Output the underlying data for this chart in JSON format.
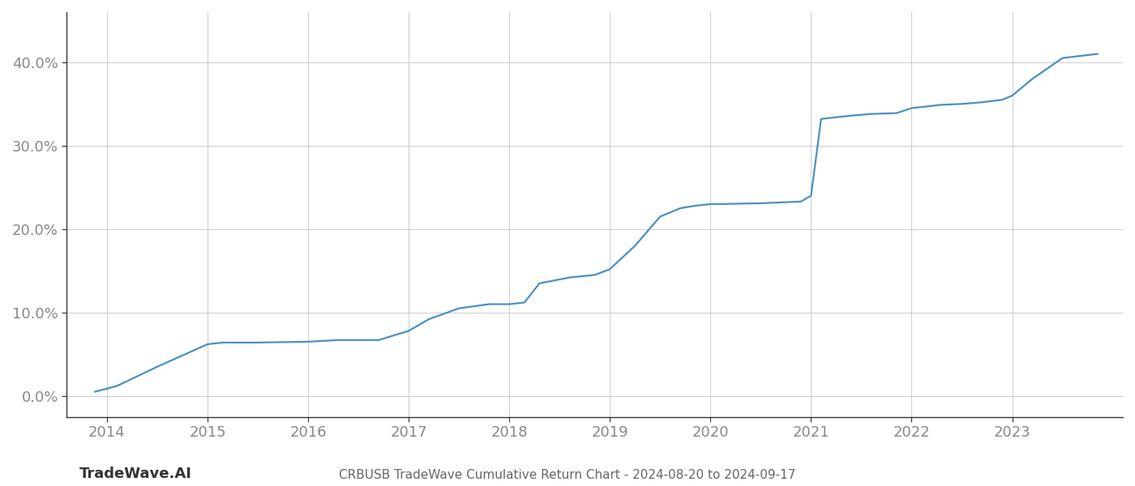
{
  "title": "CRBUSB TradeWave Cumulative Return Chart - 2024-08-20 to 2024-09-17",
  "watermark": "TradeWave.AI",
  "line_color": "#4a90c4",
  "background_color": "#ffffff",
  "grid_color": "#cccccc",
  "x_values": [
    2013.88,
    2014.1,
    2014.5,
    2015.0,
    2015.15,
    2015.5,
    2016.0,
    2016.3,
    2016.7,
    2017.0,
    2017.2,
    2017.5,
    2017.8,
    2018.0,
    2018.15,
    2018.3,
    2018.6,
    2018.85,
    2019.0,
    2019.25,
    2019.5,
    2019.7,
    2019.85,
    2020.0,
    2020.1,
    2020.5,
    2020.7,
    2020.9,
    2021.0,
    2021.1,
    2021.4,
    2021.6,
    2021.85,
    2022.0,
    2022.3,
    2022.5,
    2022.7,
    2022.9,
    2023.0,
    2023.2,
    2023.5,
    2023.85
  ],
  "y_values": [
    0.5,
    1.2,
    3.5,
    6.2,
    6.4,
    6.4,
    6.5,
    6.7,
    6.7,
    7.8,
    9.2,
    10.5,
    11.0,
    11.0,
    11.2,
    13.5,
    14.2,
    14.5,
    15.2,
    18.0,
    21.5,
    22.5,
    22.8,
    23.0,
    23.0,
    23.1,
    23.2,
    23.3,
    24.0,
    33.2,
    33.6,
    33.8,
    33.9,
    34.5,
    34.9,
    35.0,
    35.2,
    35.5,
    36.0,
    38.0,
    40.5,
    41.0
  ],
  "xlim": [
    2013.6,
    2024.1
  ],
  "ylim": [
    -2.5,
    46
  ],
  "xticks": [
    2014,
    2015,
    2016,
    2017,
    2018,
    2019,
    2020,
    2021,
    2022,
    2023
  ],
  "yticks": [
    0.0,
    10.0,
    20.0,
    30.0,
    40.0
  ],
  "ytick_labels": [
    "0.0%",
    "10.0%",
    "20.0%",
    "30.0%",
    "40.0%"
  ],
  "line_width": 1.6,
  "title_fontsize": 11,
  "tick_fontsize": 13,
  "watermark_fontsize": 13
}
